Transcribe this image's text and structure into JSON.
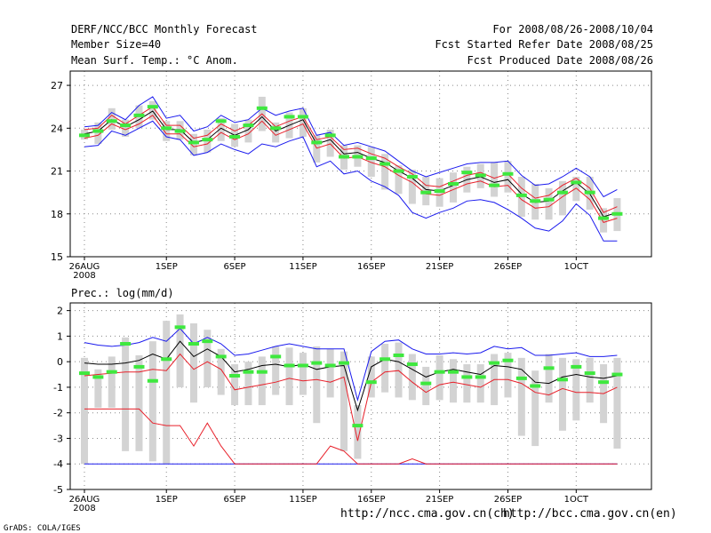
{
  "header": {
    "title": "DERF/NCC/BCC Monthly Forecast",
    "member_size": "Member Size=40",
    "variable": "Mean Surf. Temp.: °C Anom.",
    "period": "For 2008/08/26-2008/10/04",
    "start_date": "Fcst Started Refer Date 2008/08/25",
    "produced_date": "Fcst Produced Date 2008/08/26"
  },
  "footer": {
    "url_ch": "http://ncc.cma.gov.cn(ch)",
    "url_en": "http://bcc.cma.gov.cn(en)",
    "grads": "GrADS: COLA/IGES"
  },
  "colors": {
    "box": "#d3d3d3",
    "median": "#3ee83e",
    "mean": "#000000",
    "inner_band": "#e8202a",
    "outer_band": "#1a1aee",
    "grid": "#888888"
  },
  "chart_data": [
    {
      "type": "box-and-line",
      "title": "Mean Surf. Temp.: °C Anom.",
      "x_tick_labels": [
        "26AUG",
        "1SEP",
        "6SEP",
        "11SEP",
        "16SEP",
        "21SEP",
        "26SEP",
        "1OCT"
      ],
      "x_tick_days": [
        0,
        6,
        11,
        16,
        21,
        26,
        31,
        36
      ],
      "x_sublabel": "2008",
      "ylim": [
        15,
        28
      ],
      "yticks": [
        15,
        18,
        21,
        24,
        27
      ],
      "days": [
        0,
        1,
        2,
        3,
        4,
        5,
        6,
        7,
        8,
        9,
        10,
        11,
        12,
        13,
        14,
        15,
        16,
        17,
        18,
        19,
        20,
        21,
        22,
        23,
        24,
        25,
        26,
        27,
        28,
        29,
        30,
        31,
        32,
        33,
        34,
        35,
        36,
        37,
        38,
        39
      ],
      "mean": [
        23.6,
        23.8,
        24.6,
        24.1,
        24.6,
        25.2,
        23.9,
        23.9,
        23.0,
        23.2,
        24.0,
        23.5,
        23.9,
        24.8,
        23.8,
        24.2,
        24.6,
        22.9,
        23.2,
        22.2,
        22.3,
        21.9,
        21.6,
        21.0,
        20.5,
        19.7,
        19.6,
        20.0,
        20.4,
        20.6,
        20.2,
        20.4,
        19.4,
        18.8,
        18.9,
        19.6,
        20.2,
        19.4,
        17.8,
        18.1
      ],
      "upper_outer": [
        24.1,
        24.2,
        25.1,
        24.6,
        25.6,
        26.2,
        24.7,
        24.9,
        23.8,
        24.1,
        24.9,
        24.4,
        24.6,
        25.4,
        24.9,
        25.2,
        25.4,
        23.5,
        23.7,
        22.8,
        23.0,
        22.7,
        22.4,
        21.7,
        21.0,
        20.6,
        20.9,
        21.2,
        21.5,
        21.6,
        21.6,
        21.7,
        20.7,
        20.0,
        20.1,
        20.6,
        21.2,
        20.6,
        19.2,
        19.7
      ],
      "lower_outer": [
        22.7,
        22.8,
        23.8,
        23.5,
        24.0,
        24.5,
        23.4,
        23.2,
        22.1,
        22.3,
        22.9,
        22.5,
        22.2,
        22.9,
        22.7,
        23.1,
        23.4,
        21.3,
        21.7,
        20.8,
        21.0,
        20.3,
        19.9,
        19.3,
        18.1,
        17.7,
        18.1,
        18.4,
        18.9,
        19.0,
        18.8,
        18.3,
        17.7,
        17.0,
        16.8,
        17.5,
        18.7,
        17.9,
        16.1,
        16.1
      ],
      "upper_inner": [
        23.9,
        24.0,
        24.9,
        24.3,
        24.9,
        25.5,
        24.2,
        24.2,
        23.3,
        23.5,
        24.3,
        23.8,
        24.2,
        25.0,
        24.1,
        24.5,
        24.8,
        23.2,
        23.4,
        22.5,
        22.6,
        22.2,
        21.9,
        21.3,
        20.8,
        20.0,
        19.9,
        20.3,
        20.7,
        20.9,
        20.5,
        20.8,
        19.8,
        19.1,
        19.3,
        20.0,
        20.5,
        19.8,
        18.1,
        18.5
      ],
      "lower_inner": [
        23.3,
        23.5,
        24.3,
        23.9,
        24.3,
        24.9,
        23.6,
        23.6,
        22.7,
        22.9,
        23.7,
        23.2,
        23.6,
        24.5,
        23.5,
        23.9,
        24.3,
        22.6,
        22.9,
        21.9,
        22.0,
        21.6,
        21.3,
        20.7,
        20.2,
        19.4,
        19.3,
        19.7,
        20.1,
        20.3,
        19.9,
        20.0,
        19.0,
        18.4,
        18.5,
        19.2,
        19.8,
        19.0,
        17.4,
        17.7
      ],
      "median": [
        23.5,
        23.8,
        24.5,
        24.2,
        24.9,
        25.5,
        24.0,
        23.8,
        23.0,
        23.2,
        24.5,
        23.4,
        24.2,
        25.4,
        24.0,
        24.8,
        24.8,
        23.0,
        23.5,
        22.0,
        22.0,
        21.9,
        21.5,
        21.0,
        20.6,
        19.5,
        19.6,
        20.1,
        20.9,
        20.7,
        20.0,
        20.8,
        19.3,
        18.9,
        19.0,
        19.5,
        20.2,
        19.5,
        17.7,
        18.0
      ],
      "box_high": [
        23.9,
        24.4,
        25.4,
        24.6,
        25.6,
        25.9,
        24.5,
        24.5,
        23.6,
        23.9,
        24.7,
        24.3,
        24.6,
        26.2,
        24.4,
        25.1,
        25.4,
        23.5,
        23.9,
        22.8,
        22.8,
        22.7,
        22.2,
        21.4,
        21.1,
        20.6,
        20.5,
        20.9,
        21.3,
        21.5,
        21.6,
        21.7,
        20.6,
        20.1,
        19.8,
        20.3,
        20.6,
        20.6,
        18.4,
        19.1
      ],
      "box_low": [
        23.2,
        22.9,
        23.9,
        23.4,
        24.0,
        24.6,
        23.1,
        23.2,
        22.1,
        22.3,
        23.1,
        22.7,
        23.0,
        23.8,
        23.0,
        23.3,
        23.4,
        21.6,
        22.0,
        21.1,
        21.3,
        20.6,
        19.7,
        19.4,
        18.7,
        18.6,
        18.5,
        18.8,
        19.5,
        19.8,
        19.2,
        19.5,
        17.8,
        17.6,
        17.6,
        17.9,
        18.9,
        18.3,
        16.7,
        16.8
      ]
    },
    {
      "type": "box-and-line",
      "title": "Prec.: log(mm/d)",
      "x_tick_labels": [
        "26AUG",
        "1SEP",
        "6SEP",
        "11SEP",
        "16SEP",
        "21SEP",
        "26SEP",
        "1OCT"
      ],
      "x_tick_days": [
        0,
        6,
        11,
        16,
        21,
        26,
        31,
        36
      ],
      "x_sublabel": "2008",
      "ylim": [
        -5,
        2.3
      ],
      "yticks": [
        -5,
        -4,
        -3,
        -2,
        -1,
        0,
        1,
        2
      ],
      "days": [
        0,
        1,
        2,
        3,
        4,
        5,
        6,
        7,
        8,
        9,
        10,
        11,
        12,
        13,
        14,
        15,
        16,
        17,
        18,
        19,
        20,
        21,
        22,
        23,
        24,
        25,
        26,
        27,
        28,
        29,
        30,
        31,
        32,
        33,
        34,
        35,
        36,
        37,
        38,
        39
      ],
      "mean": [
        -0.05,
        -0.1,
        -0.1,
        -0.05,
        0.05,
        0.3,
        0.1,
        0.8,
        0.2,
        0.5,
        0.2,
        -0.4,
        -0.3,
        -0.15,
        -0.1,
        -0.2,
        -0.1,
        -0.3,
        -0.2,
        -0.15,
        -1.9,
        -0.2,
        0.1,
        0.0,
        -0.3,
        -0.6,
        -0.4,
        -0.3,
        -0.4,
        -0.5,
        -0.15,
        -0.2,
        -0.3,
        -0.8,
        -0.85,
        -0.6,
        -0.5,
        -0.6,
        -0.65,
        -0.55
      ],
      "upper_outer": [
        0.75,
        0.65,
        0.6,
        0.65,
        0.75,
        0.95,
        0.8,
        1.3,
        0.7,
        0.95,
        0.7,
        0.25,
        0.3,
        0.45,
        0.6,
        0.7,
        0.6,
        0.5,
        0.5,
        0.5,
        -1.5,
        0.4,
        0.8,
        0.85,
        0.5,
        0.3,
        0.3,
        0.35,
        0.3,
        0.35,
        0.6,
        0.5,
        0.55,
        0.25,
        0.25,
        0.3,
        0.35,
        0.2,
        0.2,
        0.25
      ],
      "lower_outer": [
        -4.0,
        -4.0,
        -4.0,
        -4.0,
        -4.0,
        -4.0,
        -4.0,
        -4.0,
        -4.0,
        -4.0,
        -4.0,
        -4.0,
        -4.0,
        -4.0,
        -4.0,
        -4.0,
        -4.0,
        -4.0,
        -4.0,
        -4.0,
        -4.0,
        -4.0,
        -4.0,
        -4.0,
        -4.0,
        -4.0,
        -4.0,
        -4.0,
        -4.0,
        -4.0,
        -4.0,
        -4.0,
        -4.0,
        -4.0,
        -4.0,
        -4.0,
        -4.0,
        -4.0,
        -4.0,
        -4.0
      ],
      "upper_inner": [
        -0.55,
        -0.5,
        -0.45,
        -0.4,
        -0.4,
        -0.3,
        -0.35,
        0.3,
        -0.3,
        0.0,
        -0.3,
        -1.1,
        -1.0,
        -0.9,
        -0.8,
        -0.65,
        -0.75,
        -0.7,
        -0.8,
        -0.6,
        -3.1,
        -0.8,
        -0.4,
        -0.35,
        -0.8,
        -1.2,
        -0.9,
        -0.8,
        -0.9,
        -1.0,
        -0.7,
        -0.7,
        -0.85,
        -1.2,
        -1.3,
        -1.05,
        -1.2,
        -1.2,
        -1.25,
        -1.0
      ],
      "lower_inner": [
        -1.85,
        -1.85,
        -1.85,
        -1.85,
        -1.85,
        -2.4,
        -2.5,
        -2.5,
        -3.3,
        -2.4,
        -3.3,
        -4.0,
        -4.0,
        -4.0,
        -4.0,
        -4.0,
        -4.0,
        -4.0,
        -3.3,
        -3.5,
        -4.0,
        -4.0,
        -4.0,
        -4.0,
        -3.8,
        -4.0,
        -4.0,
        -4.0,
        -4.0,
        -4.0,
        -4.0,
        -4.0,
        -4.0,
        -4.0,
        -4.0,
        -4.0,
        -4.0,
        -4.0,
        -4.0,
        -4.0
      ],
      "median": [
        -0.45,
        -0.6,
        -0.4,
        0.7,
        -0.2,
        -0.75,
        0.1,
        1.35,
        0.7,
        0.8,
        0.2,
        -0.55,
        -0.4,
        -0.4,
        0.2,
        -0.15,
        -0.15,
        -0.05,
        -0.15,
        -0.05,
        -2.5,
        -0.8,
        0.1,
        0.25,
        -0.1,
        -0.85,
        -0.4,
        -0.4,
        -0.6,
        -0.6,
        -0.05,
        0.05,
        -0.65,
        -0.95,
        -0.25,
        -0.7,
        -0.2,
        -0.45,
        -0.8,
        -0.5
      ],
      "box_high": [
        0.15,
        -0.3,
        0.2,
        0.95,
        0.25,
        0.8,
        1.6,
        1.85,
        1.5,
        1.25,
        0.5,
        -0.1,
        0.0,
        0.2,
        0.6,
        0.55,
        0.35,
        0.6,
        0.5,
        0.4,
        -1.7,
        0.2,
        0.7,
        0.75,
        0.3,
        -0.2,
        0.25,
        0.1,
        -0.1,
        -0.1,
        0.3,
        0.35,
        0.15,
        -0.35,
        0.3,
        0.15,
        0.1,
        0.15,
        -0.1,
        0.15
      ],
      "box_low": [
        -4.0,
        -1.8,
        -1.8,
        -3.5,
        -3.5,
        -3.9,
        -4.0,
        -1.0,
        -1.6,
        -1.0,
        -1.3,
        -1.7,
        -1.7,
        -1.7,
        -1.3,
        -1.7,
        -1.3,
        -2.4,
        -1.4,
        -3.5,
        -3.8,
        -1.4,
        -1.2,
        -1.4,
        -1.5,
        -1.7,
        -1.5,
        -1.6,
        -1.6,
        -1.6,
        -1.7,
        -1.4,
        -2.9,
        -3.3,
        -1.6,
        -2.7,
        -2.3,
        -1.6,
        -2.4,
        -3.4
      ]
    }
  ]
}
